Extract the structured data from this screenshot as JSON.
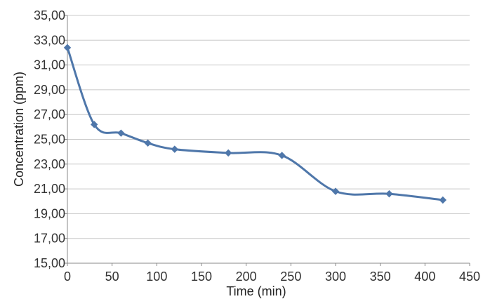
{
  "chart_data": {
    "type": "line",
    "xlabel": "Time (min)",
    "ylabel": "Concentration (ppm)",
    "xlim": [
      0,
      450
    ],
    "ylim": [
      15,
      35
    ],
    "xticks": [
      0,
      50,
      100,
      150,
      200,
      250,
      300,
      350,
      400,
      450
    ],
    "yticks": [
      15,
      17,
      19,
      21,
      23,
      25,
      27,
      29,
      31,
      33,
      35
    ],
    "xtick_labels": [
      "0",
      "50",
      "100",
      "150",
      "200",
      "250",
      "300",
      "350",
      "400",
      "450"
    ],
    "ytick_labels": [
      "15,00",
      "17,00",
      "19,00",
      "21,00",
      "23,00",
      "25,00",
      "27,00",
      "29,00",
      "31,00",
      "33,00",
      "35,00"
    ],
    "grid": "horizontal",
    "smooth": true,
    "marker": "diamond",
    "series": [
      {
        "x": [
          0,
          30,
          60,
          90,
          120,
          180,
          240,
          300,
          360,
          420
        ],
        "y": [
          32.4,
          26.2,
          25.5,
          24.7,
          24.2,
          23.9,
          23.7,
          20.8,
          20.6,
          20.1
        ],
        "color": "#4f77aa"
      }
    ],
    "colors": {
      "gridline": "#c8c8c8",
      "axis": "#888888",
      "line": "#4f77aa"
    }
  }
}
